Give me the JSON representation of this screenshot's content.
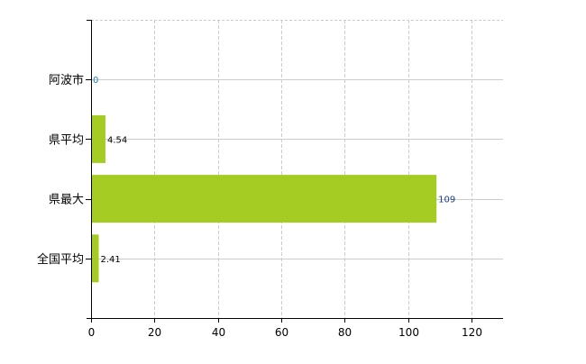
{
  "chart_data": {
    "type": "bar",
    "orientation": "horizontal",
    "categories": [
      "阿波市",
      "県平均",
      "県最大",
      "全国平均"
    ],
    "values": [
      0,
      4.54,
      109,
      2.41
    ],
    "data_labels": [
      "0",
      "4.54",
      "109",
      "2.41"
    ],
    "title": "",
    "xlabel": "",
    "ylabel": "",
    "xlim": [
      0,
      130
    ],
    "xticks": [
      0,
      20,
      40,
      60,
      80,
      100,
      120
    ],
    "grid": true,
    "legend": "none",
    "colors": {
      "bar": "#a4cc22",
      "zero_label": "#1a7fc4",
      "label": "#000000",
      "label_109": "#1a3d8c",
      "grid": "#cccccc"
    }
  }
}
